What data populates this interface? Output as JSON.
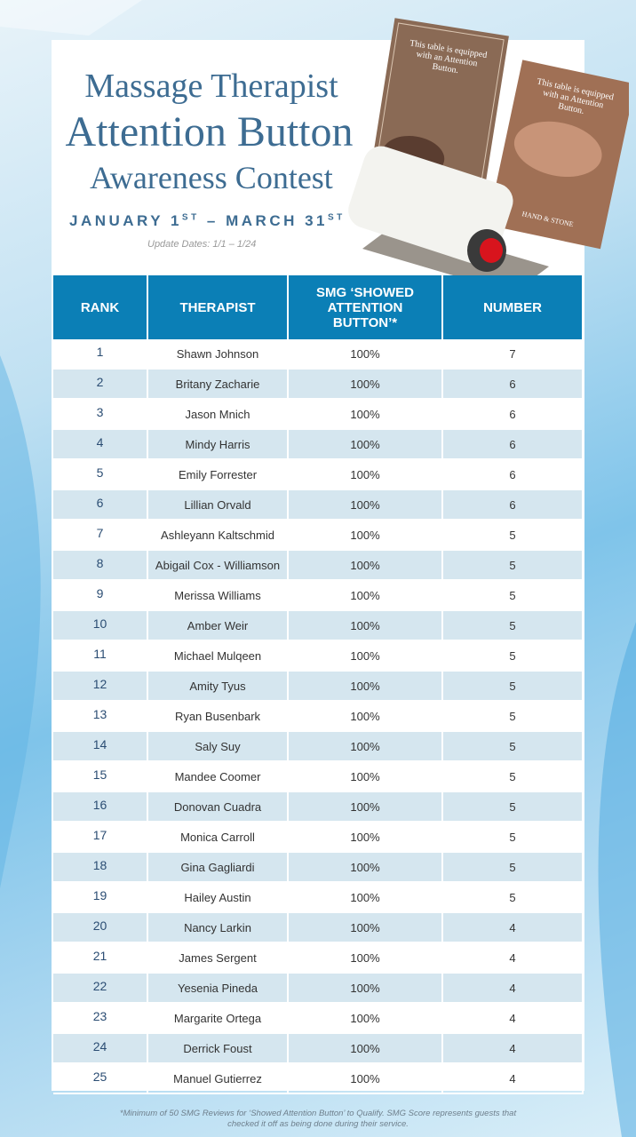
{
  "header": {
    "title_lines": [
      "Massage Therapist",
      "Attention Button",
      "Awareness Contest"
    ],
    "dates": {
      "start": "JANUARY 1",
      "start_suffix": "ST",
      "separator": " – ",
      "end": "MARCH 31",
      "end_suffix": "ST"
    },
    "update": "Update Dates: 1/1 – 1/24"
  },
  "table": {
    "columns": [
      "RANK",
      "THERAPIST",
      "SMG ‘SHOWED ATTENTION BUTTON’*",
      "NUMBER"
    ],
    "rows": [
      [
        1,
        "Shawn Johnson",
        "100%",
        7
      ],
      [
        2,
        "Britany Zacharie",
        "100%",
        6
      ],
      [
        3,
        "Jason Mnich",
        "100%",
        6
      ],
      [
        4,
        "Mindy Harris",
        "100%",
        6
      ],
      [
        5,
        "Emily Forrester",
        "100%",
        6
      ],
      [
        6,
        "Lillian Orvald",
        "100%",
        6
      ],
      [
        7,
        "Ashleyann Kaltschmid",
        "100%",
        5
      ],
      [
        8,
        "Abigail Cox - Williamson",
        "100%",
        5
      ],
      [
        9,
        "Merissa Williams",
        "100%",
        5
      ],
      [
        10,
        "Amber Weir",
        "100%",
        5
      ],
      [
        11,
        "Michael Mulqeen",
        "100%",
        5
      ],
      [
        12,
        "Amity Tyus",
        "100%",
        5
      ],
      [
        13,
        "Ryan Busenbark",
        "100%",
        5
      ],
      [
        14,
        "Saly Suy",
        "100%",
        5
      ],
      [
        15,
        "Mandee Coomer",
        "100%",
        5
      ],
      [
        16,
        "Donovan Cuadra",
        "100%",
        5
      ],
      [
        17,
        "Monica Carroll",
        "100%",
        5
      ],
      [
        18,
        "Gina Gagliardi",
        "100%",
        5
      ],
      [
        19,
        "Hailey Austin",
        "100%",
        5
      ],
      [
        20,
        "Nancy Larkin",
        "100%",
        4
      ],
      [
        21,
        "James Sergent",
        "100%",
        4
      ],
      [
        22,
        "Yesenia Pineda",
        "100%",
        4
      ],
      [
        23,
        "Margarite Ortega",
        "100%",
        4
      ],
      [
        24,
        "Derrick Foust",
        "100%",
        4
      ],
      [
        25,
        "Manuel Gutierrez",
        "100%",
        4
      ]
    ]
  },
  "card_text": "This table is equipped with an Attention Button.",
  "brand": "HAND & STONE",
  "footnote": [
    "*Minimum of 50 SMG Reviews for ‘Showed Attention Button’ to Qualify. SMG Score represents guests that",
    "checked it off as being done during their service."
  ]
}
